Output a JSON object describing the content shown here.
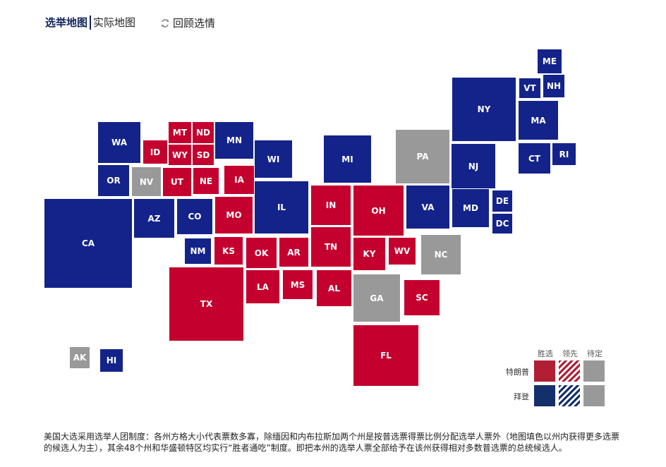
{
  "tabs": [
    {
      "label": "选举地图",
      "active": true
    },
    {
      "label": "实际地图",
      "active": false
    }
  ],
  "review": {
    "label": "回顾选情",
    "icon": "refresh-icon"
  },
  "colors": {
    "trump": "#c4002e",
    "biden": "#13238a",
    "pending": "#999999",
    "trump_lead": "#c4002e",
    "biden_lead": "#13238a"
  },
  "states": [
    {
      "code": "ME",
      "party": "biden"
    },
    {
      "code": "VT",
      "party": "biden"
    },
    {
      "code": "NH",
      "party": "biden"
    },
    {
      "code": "NY",
      "party": "biden"
    },
    {
      "code": "MA",
      "party": "biden"
    },
    {
      "code": "CT",
      "party": "biden"
    },
    {
      "code": "RI",
      "party": "biden"
    },
    {
      "code": "WA",
      "party": "biden"
    },
    {
      "code": "MT",
      "party": "trump"
    },
    {
      "code": "ND",
      "party": "trump"
    },
    {
      "code": "MN",
      "party": "biden"
    },
    {
      "code": "ID",
      "party": "trump"
    },
    {
      "code": "WY",
      "party": "trump"
    },
    {
      "code": "SD",
      "party": "trump"
    },
    {
      "code": "WI",
      "party": "biden"
    },
    {
      "code": "MI",
      "party": "biden"
    },
    {
      "code": "PA",
      "party": "pending"
    },
    {
      "code": "NJ",
      "party": "biden"
    },
    {
      "code": "OR",
      "party": "biden"
    },
    {
      "code": "NV",
      "party": "pending"
    },
    {
      "code": "UT",
      "party": "trump"
    },
    {
      "code": "NE",
      "party": "trump"
    },
    {
      "code": "IA",
      "party": "trump"
    },
    {
      "code": "IL",
      "party": "biden"
    },
    {
      "code": "IN",
      "party": "trump"
    },
    {
      "code": "OH",
      "party": "trump"
    },
    {
      "code": "VA",
      "party": "biden"
    },
    {
      "code": "MD",
      "party": "biden"
    },
    {
      "code": "DE",
      "party": "biden"
    },
    {
      "code": "DC",
      "party": "biden"
    },
    {
      "code": "CA",
      "party": "biden"
    },
    {
      "code": "AZ",
      "party": "biden"
    },
    {
      "code": "CO",
      "party": "biden"
    },
    {
      "code": "MO",
      "party": "trump"
    },
    {
      "code": "NM",
      "party": "biden"
    },
    {
      "code": "KS",
      "party": "trump"
    },
    {
      "code": "OK",
      "party": "trump"
    },
    {
      "code": "AR",
      "party": "trump"
    },
    {
      "code": "TN",
      "party": "trump"
    },
    {
      "code": "KY",
      "party": "trump"
    },
    {
      "code": "WV",
      "party": "trump"
    },
    {
      "code": "NC",
      "party": "pending"
    },
    {
      "code": "TX",
      "party": "trump"
    },
    {
      "code": "LA",
      "party": "trump"
    },
    {
      "code": "MS",
      "party": "trump"
    },
    {
      "code": "AL",
      "party": "trump"
    },
    {
      "code": "GA",
      "party": "pending"
    },
    {
      "code": "SC",
      "party": "trump"
    },
    {
      "code": "FL",
      "party": "trump"
    },
    {
      "code": "AK",
      "party": "pending"
    },
    {
      "code": "HI",
      "party": "biden"
    }
  ],
  "legend": {
    "columns": [
      "胜选",
      "领先",
      "待定"
    ],
    "rows": [
      "特朗普",
      "拜登"
    ]
  },
  "note": "美国大选采用选举人团制度：各州方格大小代表票数多寡，除缅因和内布拉斯加两个州是按普选票得票比例分配选举人票外（地图填色以州内获得更多选票的候选人为主），其余48个州和华盛顿特区均实行“胜者通吃”制度。即把本州的选举人票全部给予在该州获得相对多数普选票的总统候选人。"
}
